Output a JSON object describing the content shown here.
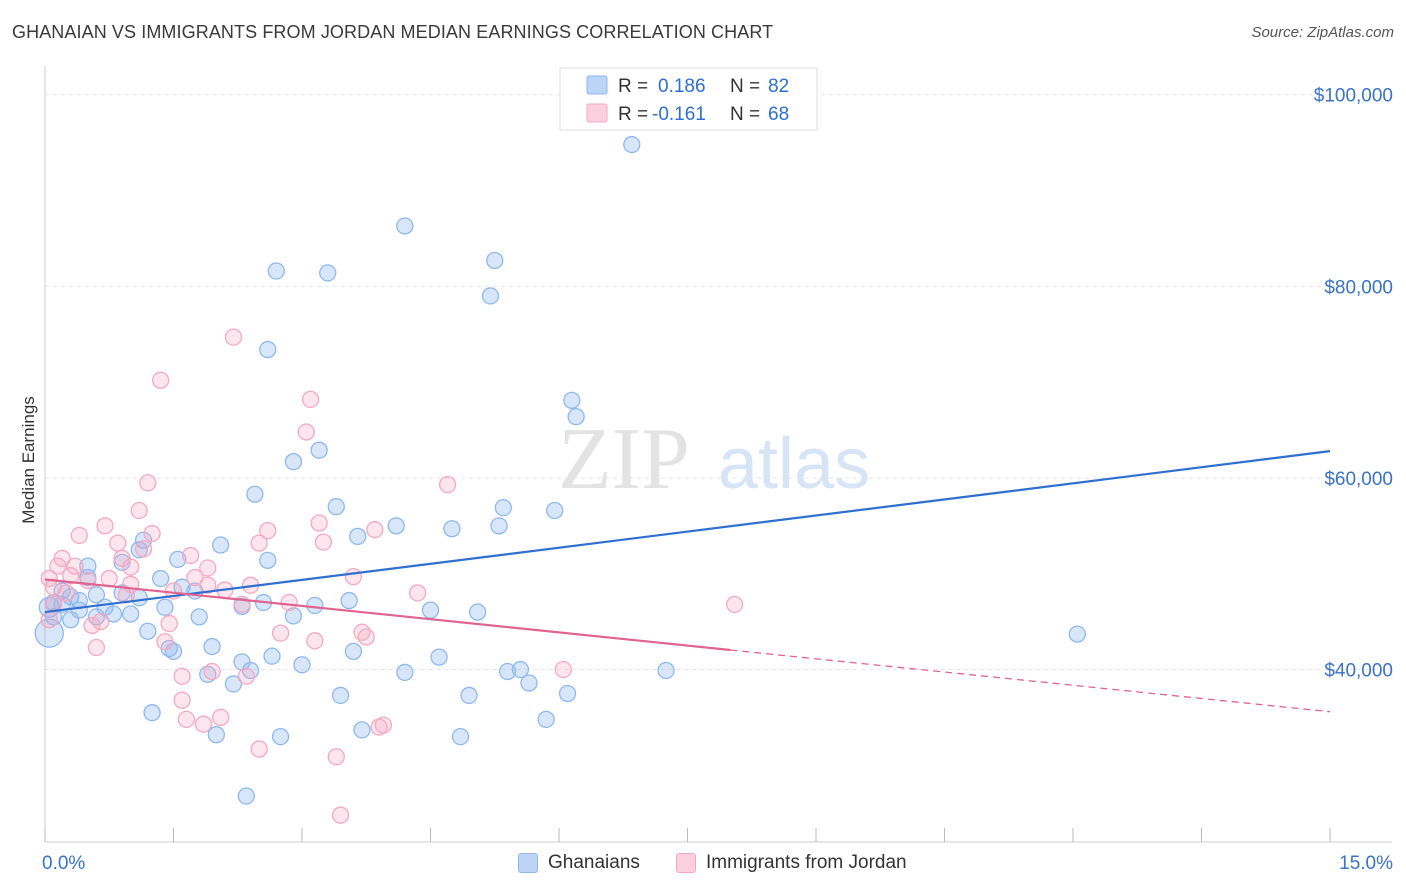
{
  "chart_data": {
    "type": "scatter",
    "title": "GHANAIAN VS IMMIGRANTS FROM JORDAN MEDIAN EARNINGS CORRELATION CHART",
    "source": "Source: ZipAtlas.com",
    "watermark": {
      "zip": "ZIP",
      "atlas": "atlas"
    },
    "ylabel": "Median Earnings",
    "xlim": [
      0,
      15
    ],
    "ylim": [
      22000,
      103000
    ],
    "x_tick_labels": [
      "0.0%",
      "15.0%"
    ],
    "y_ticks": [
      {
        "value": 40000,
        "label": "$40,000"
      },
      {
        "value": 60000,
        "label": "$60,000"
      },
      {
        "value": 80000,
        "label": "$80,000"
      },
      {
        "value": 100000,
        "label": "$100,000"
      }
    ],
    "grid": true,
    "legend_stats": [
      {
        "r_label": "R =",
        "r_value": "0.186",
        "n_label": "N =",
        "n_value": "82"
      },
      {
        "r_label": "R =",
        "r_value": "-0.161",
        "n_label": "N =",
        "n_value": "68"
      }
    ],
    "series": [
      {
        "name": "Ghanaians",
        "color": "#8fb8ef",
        "line_color": "#2e6fd1",
        "trend": {
          "x": [
            0,
            15
          ],
          "y": [
            46000,
            62800
          ],
          "solid_to": 15
        },
        "points": [
          [
            0.05,
            46500
          ],
          [
            0.05,
            43800
          ],
          [
            0.1,
            47000
          ],
          [
            0.1,
            45500
          ],
          [
            0.2,
            46800
          ],
          [
            0.2,
            48200
          ],
          [
            0.3,
            47600
          ],
          [
            0.3,
            45200
          ],
          [
            0.4,
            47200
          ],
          [
            0.4,
            46200
          ],
          [
            0.5,
            50800
          ],
          [
            0.5,
            49600
          ],
          [
            0.6,
            47800
          ],
          [
            0.6,
            45500
          ],
          [
            0.7,
            46500
          ],
          [
            0.8,
            45800
          ],
          [
            0.9,
            48000
          ],
          [
            0.9,
            51200
          ],
          [
            1.0,
            45800
          ],
          [
            1.1,
            52500
          ],
          [
            1.1,
            47500
          ],
          [
            1.15,
            53500
          ],
          [
            1.2,
            44000
          ],
          [
            1.25,
            35500
          ],
          [
            1.35,
            49500
          ],
          [
            1.4,
            46500
          ],
          [
            1.45,
            42200
          ],
          [
            1.5,
            41900
          ],
          [
            1.55,
            51500
          ],
          [
            1.6,
            48600
          ],
          [
            1.75,
            48200
          ],
          [
            1.8,
            45500
          ],
          [
            1.9,
            39500
          ],
          [
            1.95,
            42400
          ],
          [
            2.0,
            33200
          ],
          [
            2.05,
            53000
          ],
          [
            2.2,
            38500
          ],
          [
            2.3,
            46600
          ],
          [
            2.3,
            40800
          ],
          [
            2.35,
            26800
          ],
          [
            2.4,
            39900
          ],
          [
            2.45,
            58300
          ],
          [
            2.55,
            47000
          ],
          [
            2.6,
            51400
          ],
          [
            2.65,
            41400
          ],
          [
            2.6,
            73400
          ],
          [
            2.7,
            81600
          ],
          [
            2.75,
            33000
          ],
          [
            2.9,
            45600
          ],
          [
            2.9,
            61700
          ],
          [
            3.0,
            40500
          ],
          [
            3.15,
            46700
          ],
          [
            3.2,
            62900
          ],
          [
            3.3,
            81400
          ],
          [
            3.4,
            57000
          ],
          [
            3.45,
            37300
          ],
          [
            3.55,
            47200
          ],
          [
            3.6,
            41900
          ],
          [
            3.65,
            53900
          ],
          [
            3.7,
            33700
          ],
          [
            4.1,
            55000
          ],
          [
            4.2,
            86300
          ],
          [
            4.2,
            39700
          ],
          [
            4.5,
            46200
          ],
          [
            4.6,
            41300
          ],
          [
            4.75,
            54700
          ],
          [
            4.85,
            33000
          ],
          [
            4.95,
            37300
          ],
          [
            5.05,
            46000
          ],
          [
            5.25,
            82700
          ],
          [
            5.2,
            79000
          ],
          [
            5.3,
            55000
          ],
          [
            5.35,
            56900
          ],
          [
            5.4,
            39800
          ],
          [
            5.55,
            40000
          ],
          [
            5.65,
            38600
          ],
          [
            5.85,
            34800
          ],
          [
            5.95,
            56600
          ],
          [
            6.1,
            37500
          ],
          [
            6.15,
            68100
          ],
          [
            6.2,
            66400
          ],
          [
            6.85,
            94800
          ],
          [
            7.25,
            39900
          ],
          [
            12.05,
            43700
          ]
        ]
      },
      {
        "name": "Immigrants from Jordan",
        "color": "#f4a9c1",
        "line_color": "#e0648f",
        "trend": {
          "x": [
            0,
            15
          ],
          "y": [
            49400,
            35600
          ],
          "solid_to": 8.0
        },
        "points": [
          [
            0.05,
            49500
          ],
          [
            0.05,
            45200
          ],
          [
            0.1,
            46800
          ],
          [
            0.1,
            48600
          ],
          [
            0.15,
            50800
          ],
          [
            0.2,
            51600
          ],
          [
            0.25,
            48000
          ],
          [
            0.3,
            49800
          ],
          [
            0.35,
            50800
          ],
          [
            0.4,
            54000
          ],
          [
            0.5,
            49300
          ],
          [
            0.55,
            44600
          ],
          [
            0.6,
            42300
          ],
          [
            0.65,
            45000
          ],
          [
            0.7,
            55000
          ],
          [
            0.75,
            49500
          ],
          [
            0.85,
            53200
          ],
          [
            0.9,
            51600
          ],
          [
            0.95,
            47800
          ],
          [
            1.0,
            48900
          ],
          [
            1.0,
            50700
          ],
          [
            1.1,
            56600
          ],
          [
            1.15,
            52600
          ],
          [
            1.2,
            59500
          ],
          [
            1.25,
            54200
          ],
          [
            1.35,
            70200
          ],
          [
            1.4,
            42900
          ],
          [
            1.45,
            44800
          ],
          [
            1.5,
            48200
          ],
          [
            1.6,
            39300
          ],
          [
            1.6,
            36800
          ],
          [
            1.65,
            34800
          ],
          [
            1.7,
            51900
          ],
          [
            1.75,
            49600
          ],
          [
            1.85,
            34300
          ],
          [
            1.9,
            50600
          ],
          [
            1.9,
            48800
          ],
          [
            1.95,
            39800
          ],
          [
            2.05,
            35000
          ],
          [
            2.1,
            48300
          ],
          [
            2.2,
            74700
          ],
          [
            2.3,
            46800
          ],
          [
            2.35,
            39300
          ],
          [
            2.4,
            48800
          ],
          [
            2.5,
            31700
          ],
          [
            2.5,
            53200
          ],
          [
            2.6,
            54500
          ],
          [
            2.75,
            43800
          ],
          [
            2.85,
            47000
          ],
          [
            3.05,
            64800
          ],
          [
            3.1,
            68200
          ],
          [
            3.15,
            43000
          ],
          [
            3.2,
            55300
          ],
          [
            3.25,
            53300
          ],
          [
            3.4,
            30900
          ],
          [
            3.45,
            24800
          ],
          [
            3.6,
            49700
          ],
          [
            3.7,
            43900
          ],
          [
            3.75,
            43400
          ],
          [
            3.85,
            54600
          ],
          [
            3.9,
            34000
          ],
          [
            3.95,
            34200
          ],
          [
            4.35,
            48000
          ],
          [
            4.7,
            59300
          ],
          [
            6.05,
            40000
          ],
          [
            8.05,
            46800
          ]
        ]
      }
    ]
  }
}
